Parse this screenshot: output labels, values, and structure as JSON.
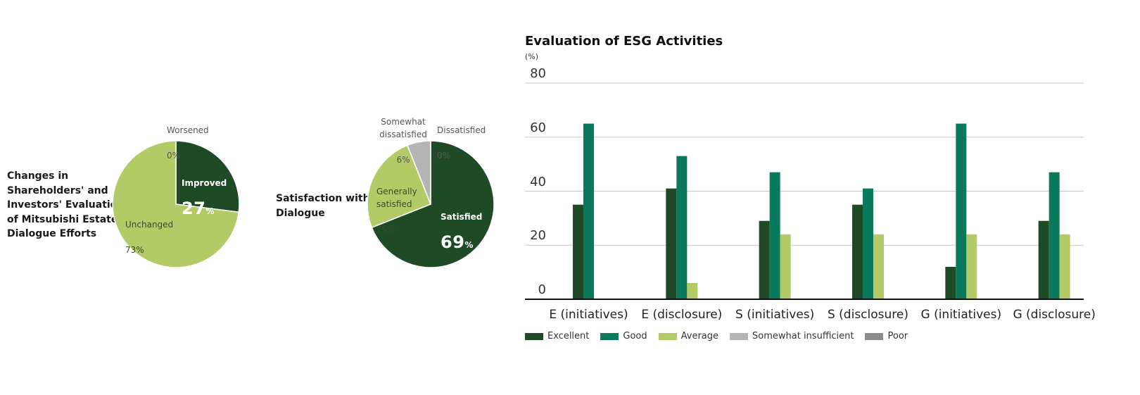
{
  "chart_data": [
    {
      "type": "pie",
      "title": "Changes in\nShareholders' and\nInvestors' Evaluation\nof Mitsubishi Estate's\nDialogue Efforts",
      "slices": [
        {
          "label": "Improved",
          "value": 27,
          "display": "27",
          "unit": "%",
          "color": "#1f4a26"
        },
        {
          "label": "Worsened",
          "value": 0,
          "display": "0%",
          "color": "#9aa69a"
        },
        {
          "label": "Unchanged",
          "value": 73,
          "display": "73%",
          "color": "#b3cb67"
        }
      ]
    },
    {
      "type": "pie",
      "title": "Satisfaction with\nDialogue",
      "slices": [
        {
          "label": "Satisfied",
          "value": 69,
          "display": "69",
          "unit": "%",
          "color": "#1f4a26"
        },
        {
          "label": "Generally\nsatisfied",
          "value": 25,
          "display": "25%",
          "color": "#b3cb67"
        },
        {
          "label": "Somewhat\ndissatisfied",
          "value": 6,
          "display": "6%",
          "color": "#b4b4b4"
        },
        {
          "label": "Dissatisfied",
          "value": 0,
          "display": "0%",
          "color": "#8c8c8c"
        }
      ]
    },
    {
      "type": "bar",
      "title": "Evaluation of ESG Activities",
      "unit": "(%)",
      "ylim": [
        0,
        80
      ],
      "yticks": [
        0,
        20,
        40,
        60,
        80
      ],
      "grid": true,
      "legend_position": "bottom",
      "categories": [
        "E (initiatives)",
        "E (disclosure)",
        "S (initiatives)",
        "S (disclosure)",
        "G (initiatives)",
        "G (disclosure)"
      ],
      "series": [
        {
          "name": "Excellent",
          "color": "#1f4a26",
          "values": [
            35,
            41,
            29,
            35,
            12,
            29
          ]
        },
        {
          "name": "Good",
          "color": "#0b7a5c",
          "values": [
            65,
            53,
            47,
            41,
            65,
            47
          ]
        },
        {
          "name": "Average",
          "color": "#b3cb67",
          "values": [
            0,
            6,
            24,
            24,
            24,
            24
          ]
        },
        {
          "name": "Somewhat insufficient",
          "color": "#b4b4b4",
          "values": [
            0,
            0,
            0,
            0,
            0,
            0
          ]
        },
        {
          "name": "Poor",
          "color": "#8c8c8c",
          "values": [
            0,
            0,
            0,
            0,
            0,
            0
          ]
        }
      ]
    }
  ]
}
